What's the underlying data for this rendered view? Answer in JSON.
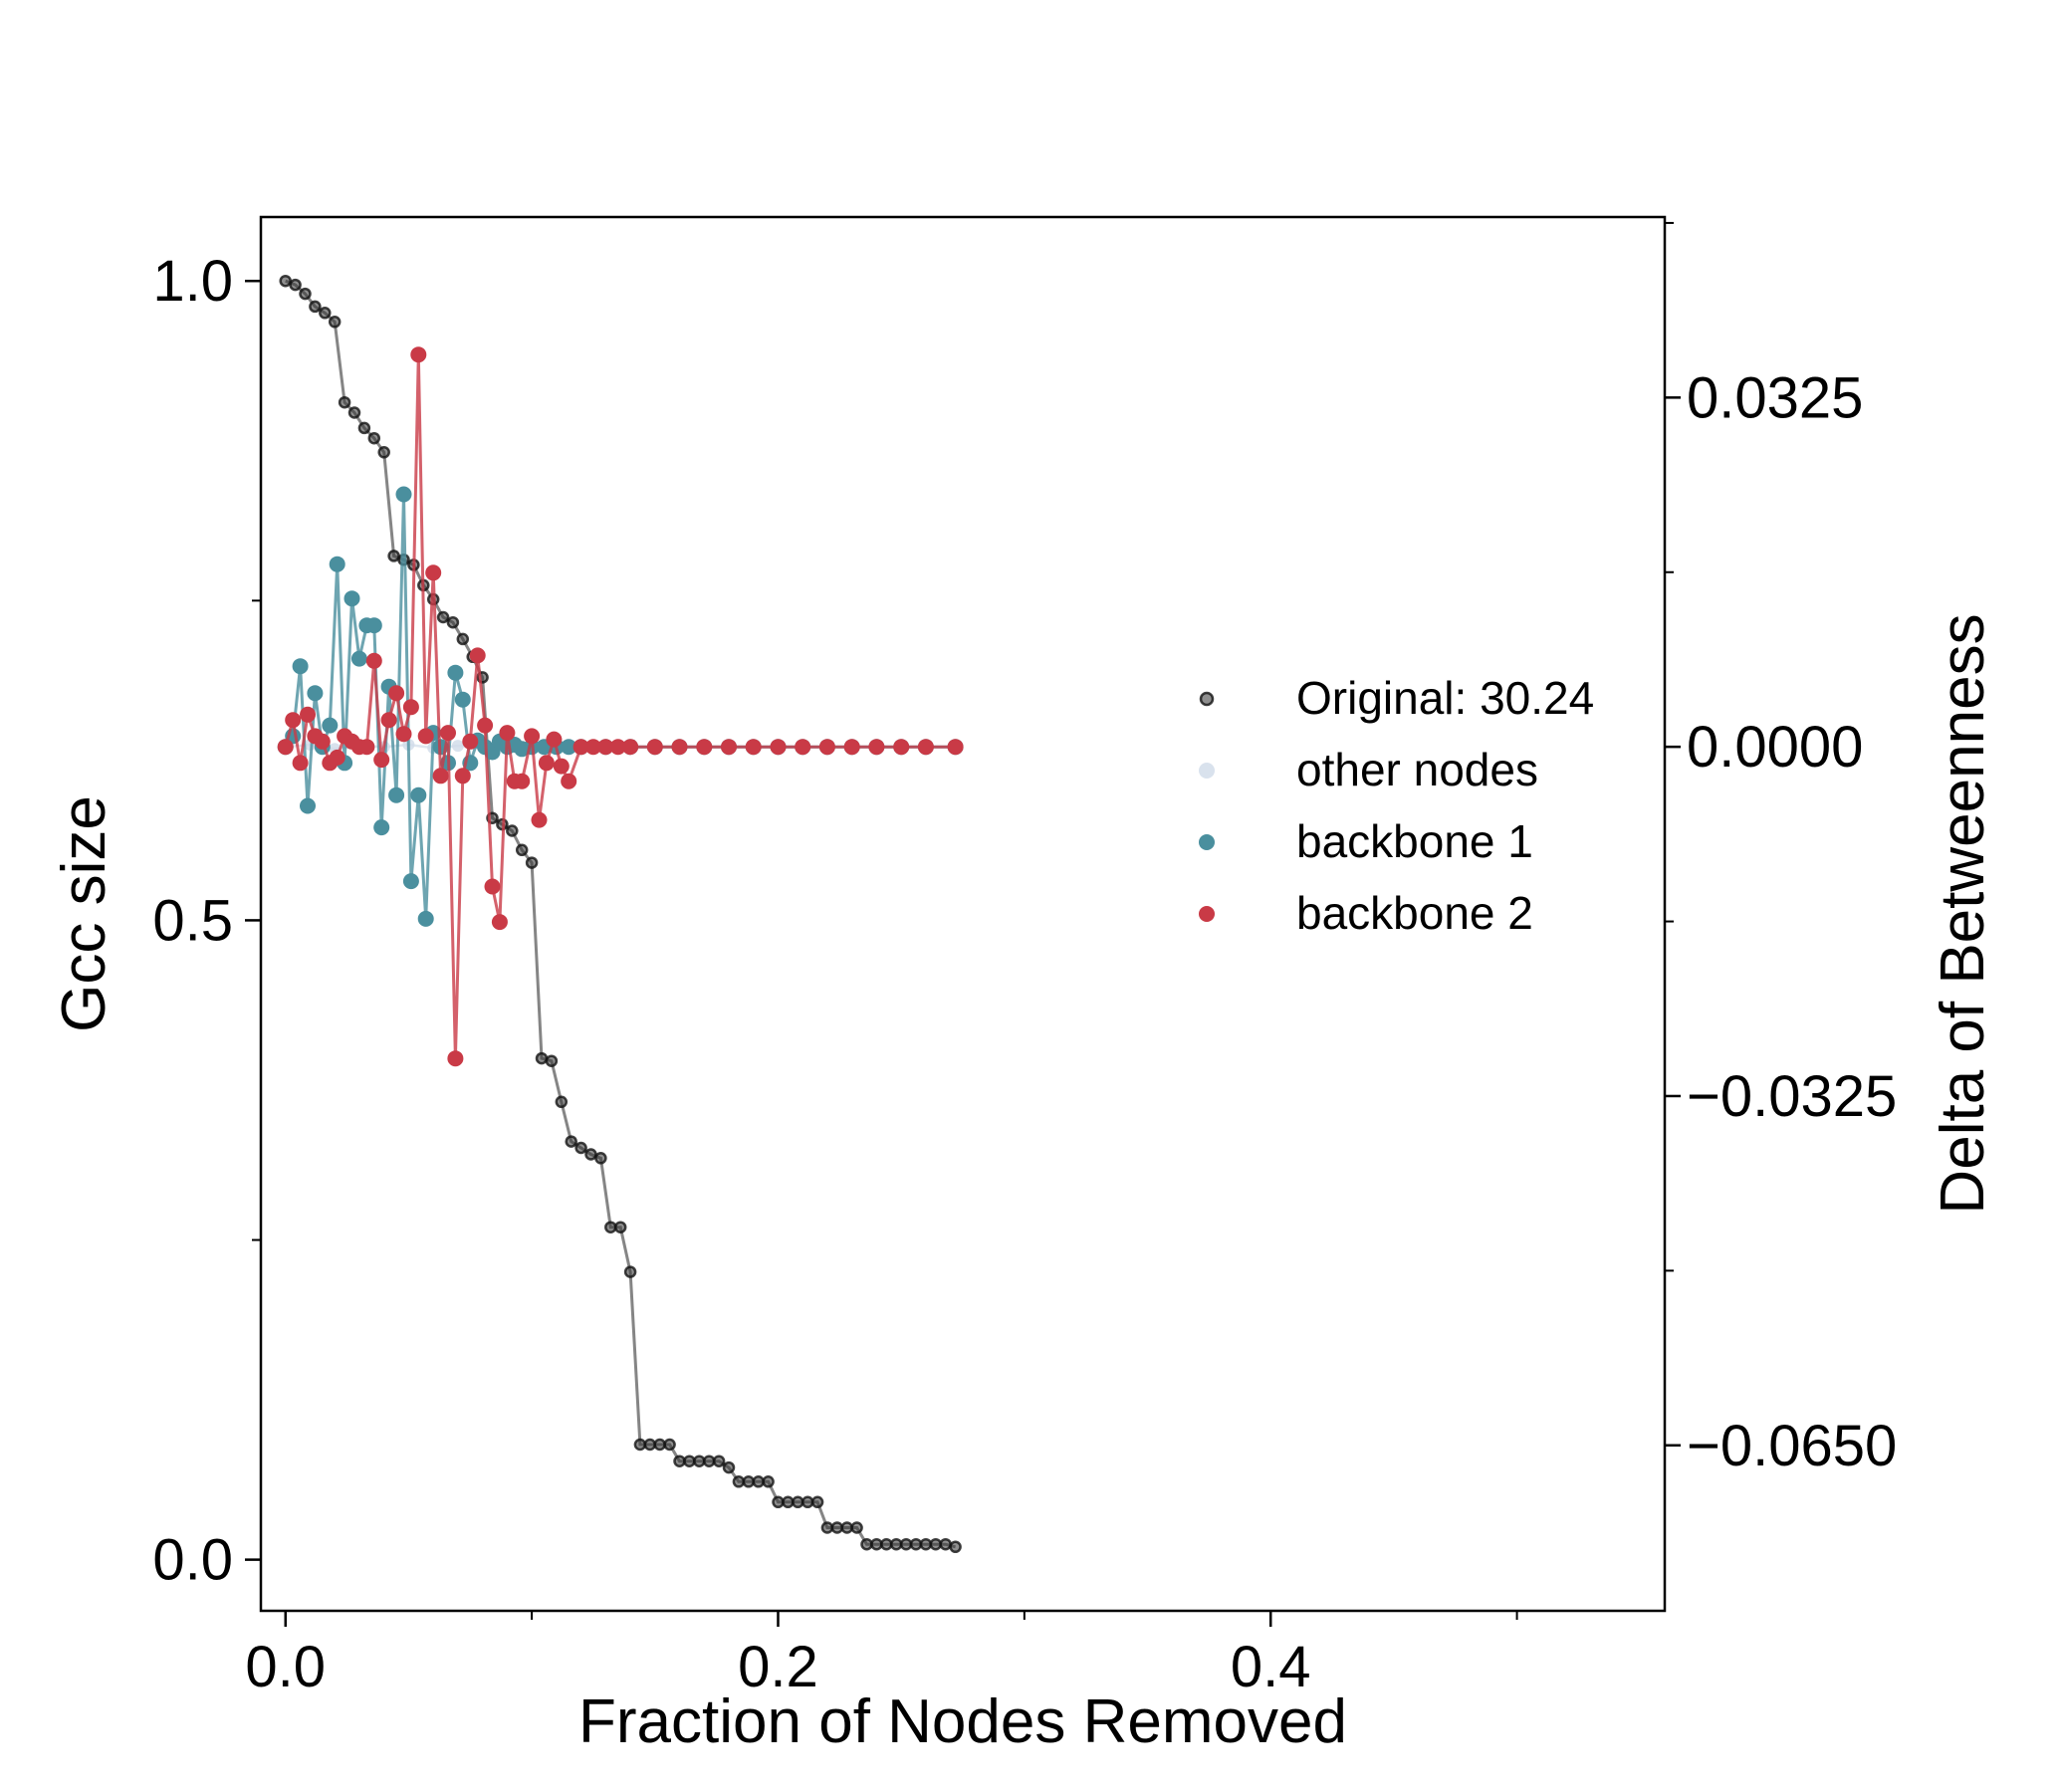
{
  "chart_data": {
    "type": "line",
    "xlabel": "Fraction of Nodes Removed",
    "ylabel": "Gcc size",
    "y2label": "Delta of Betweenness",
    "xlim": [
      -0.01,
      0.56
    ],
    "ylim": [
      -0.04,
      1.05
    ],
    "y2lim": [
      -0.0804,
      0.0493
    ],
    "x_ticks": [
      "0.0",
      "0.2",
      "0.4"
    ],
    "y_ticks": [
      "0.0",
      "0.5",
      "1.0"
    ],
    "y2_ticks": [
      "0.0325",
      "0.0000",
      "−0.0325",
      "−0.0650"
    ],
    "legend_position": "center-right",
    "colors": {
      "original": "#333333",
      "other": "#d0dbe8",
      "backbone1": "#4a8f9e",
      "backbone2": "#c93a46"
    },
    "series": [
      {
        "name": "Original: 30.24",
        "axis": "left",
        "x": [
          0.0,
          0.004,
          0.008,
          0.012,
          0.016,
          0.02,
          0.024,
          0.028,
          0.032,
          0.036,
          0.04,
          0.044,
          0.048,
          0.052,
          0.056,
          0.06,
          0.064,
          0.068,
          0.072,
          0.076,
          0.08,
          0.084,
          0.088,
          0.092,
          0.096,
          0.1,
          0.104,
          0.108,
          0.112,
          0.116,
          0.12,
          0.124,
          0.128,
          0.132,
          0.136,
          0.14,
          0.144,
          0.148,
          0.152,
          0.156,
          0.16,
          0.164,
          0.168,
          0.172,
          0.176,
          0.18,
          0.184,
          0.188,
          0.192,
          0.196,
          0.2,
          0.204,
          0.208,
          0.212,
          0.216,
          0.22,
          0.224,
          0.228,
          0.232,
          0.236,
          0.24,
          0.244,
          0.248,
          0.252,
          0.256,
          0.26,
          0.264,
          0.268,
          0.272
        ],
        "values": [
          1.0,
          0.997,
          0.99,
          0.98,
          0.975,
          0.968,
          0.905,
          0.897,
          0.885,
          0.877,
          0.866,
          0.785,
          0.782,
          0.778,
          0.762,
          0.751,
          0.737,
          0.733,
          0.72,
          0.706,
          0.69,
          0.58,
          0.575,
          0.57,
          0.555,
          0.545,
          0.392,
          0.39,
          0.358,
          0.327,
          0.322,
          0.317,
          0.314,
          0.26,
          0.26,
          0.225,
          0.09,
          0.09,
          0.09,
          0.09,
          0.077,
          0.077,
          0.077,
          0.077,
          0.077,
          0.072,
          0.061,
          0.061,
          0.061,
          0.061,
          0.045,
          0.045,
          0.045,
          0.045,
          0.045,
          0.025,
          0.025,
          0.025,
          0.025,
          0.012,
          0.012,
          0.012,
          0.012,
          0.012,
          0.012,
          0.012,
          0.012,
          0.012,
          0.01
        ]
      },
      {
        "name": "other nodes",
        "axis": "right",
        "x": [
          0.0,
          0.01,
          0.02,
          0.03,
          0.04,
          0.05,
          0.06,
          0.07,
          0.08,
          0.09,
          0.1,
          0.12,
          0.14,
          0.16,
          0.18,
          0.2,
          0.22,
          0.24,
          0.26,
          0.272
        ],
        "values": [
          0.0,
          0.0002,
          -0.0002,
          0.0001,
          0.0,
          0.0002,
          -0.0001,
          0.0001,
          0.0,
          0.0001,
          0.0,
          0.0,
          0.0,
          0.0,
          0.0,
          0.0,
          0.0,
          0.0,
          0.0,
          0.0
        ]
      },
      {
        "name": "backbone 1",
        "axis": "right",
        "x": [
          0.0,
          0.003,
          0.006,
          0.009,
          0.012,
          0.015,
          0.018,
          0.021,
          0.024,
          0.027,
          0.03,
          0.033,
          0.036,
          0.039,
          0.042,
          0.045,
          0.048,
          0.051,
          0.054,
          0.057,
          0.06,
          0.063,
          0.066,
          0.069,
          0.072,
          0.075,
          0.078,
          0.081,
          0.084,
          0.087,
          0.09,
          0.093,
          0.096,
          0.1,
          0.105,
          0.11,
          0.115,
          0.12,
          0.13,
          0.14,
          0.15,
          0.16,
          0.17,
          0.18,
          0.19,
          0.2,
          0.21,
          0.22,
          0.23,
          0.24,
          0.25,
          0.26,
          0.272
        ],
        "values": [
          0.0,
          0.001,
          0.0075,
          -0.0055,
          0.005,
          0.0,
          0.002,
          0.017,
          -0.0015,
          0.0138,
          0.0082,
          0.0113,
          0.0113,
          -0.0075,
          0.0056,
          -0.0045,
          0.0235,
          -0.0125,
          -0.0045,
          -0.016,
          0.0013,
          0.0,
          -0.0015,
          0.0069,
          0.0044,
          -0.0015,
          0.0006,
          0.0,
          -0.0005,
          0.0005,
          0.0,
          0.0002,
          -0.0002,
          0.0,
          0.0,
          0.0,
          0.0,
          0.0,
          0.0,
          0.0,
          0.0,
          0.0,
          0.0,
          0.0,
          0.0,
          0.0,
          0.0,
          0.0,
          0.0,
          0.0,
          0.0,
          0.0,
          0.0
        ]
      },
      {
        "name": "backbone 2",
        "axis": "right",
        "x": [
          0.0,
          0.003,
          0.006,
          0.009,
          0.012,
          0.015,
          0.018,
          0.021,
          0.024,
          0.027,
          0.03,
          0.033,
          0.036,
          0.039,
          0.042,
          0.045,
          0.048,
          0.051,
          0.054,
          0.057,
          0.06,
          0.063,
          0.066,
          0.069,
          0.072,
          0.075,
          0.078,
          0.081,
          0.084,
          0.087,
          0.09,
          0.093,
          0.096,
          0.1,
          0.103,
          0.106,
          0.109,
          0.112,
          0.115,
          0.12,
          0.125,
          0.13,
          0.135,
          0.14,
          0.15,
          0.16,
          0.17,
          0.18,
          0.19,
          0.2,
          0.21,
          0.22,
          0.23,
          0.24,
          0.25,
          0.26,
          0.272
        ],
        "values": [
          0.0,
          0.0025,
          -0.0015,
          0.003,
          0.001,
          0.0005,
          -0.0015,
          -0.001,
          0.001,
          0.0005,
          0.0,
          0.0,
          0.008,
          -0.0012,
          0.0025,
          0.005,
          0.0012,
          0.0037,
          0.0365,
          0.001,
          0.0162,
          -0.0027,
          0.0013,
          -0.029,
          -0.0027,
          0.0005,
          0.0085,
          0.002,
          -0.013,
          -0.0163,
          0.0013,
          -0.0032,
          -0.0032,
          0.001,
          -0.0068,
          -0.0015,
          0.0007,
          -0.0018,
          -0.0032,
          0.0,
          0.0,
          0.0,
          0.0,
          0.0,
          0.0,
          0.0,
          0.0,
          0.0,
          0.0,
          0.0,
          0.0,
          0.0,
          0.0,
          0.0,
          0.0,
          0.0,
          0.0
        ]
      }
    ]
  }
}
